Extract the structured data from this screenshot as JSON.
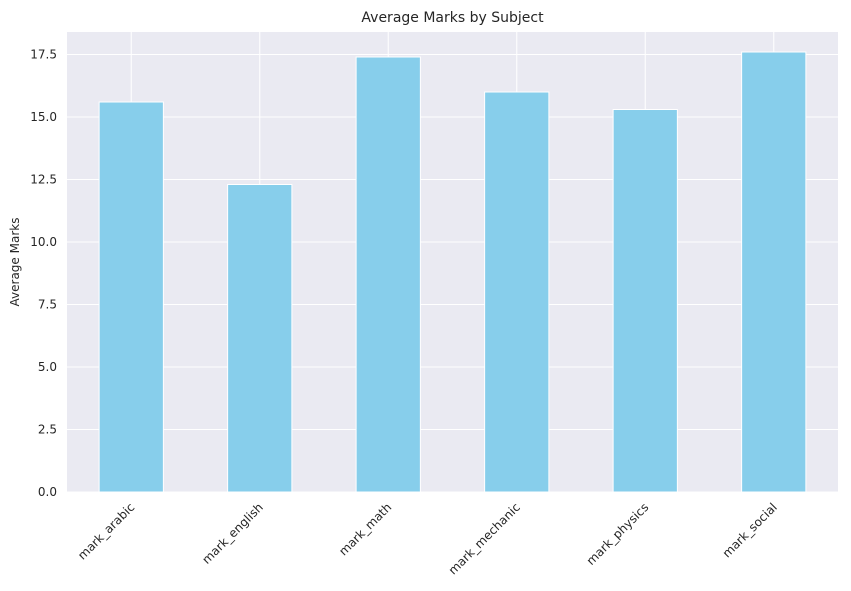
{
  "chart_data": {
    "type": "bar",
    "title": "Average Marks by Subject",
    "xlabel": "",
    "ylabel": "Average Marks",
    "categories": [
      "mark_arabic",
      "mark_english",
      "mark_math",
      "mark_mechanic",
      "mark_physics",
      "mark_social"
    ],
    "values": [
      15.6,
      12.3,
      17.4,
      16.0,
      15.3,
      17.6
    ],
    "ylim": [
      0,
      18.4
    ],
    "yticks": [
      0.0,
      2.5,
      5.0,
      7.5,
      10.0,
      12.5,
      15.0,
      17.5
    ],
    "ytick_labels": [
      "0.0",
      "2.5",
      "5.0",
      "7.5",
      "10.0",
      "12.5",
      "15.0",
      "17.5"
    ],
    "grid": true,
    "colors": {
      "bar": "#87ceeb",
      "bar_edge": "#ffffff",
      "plot_background": "#eaeaf2",
      "grid": "#ffffff",
      "text": "#262626"
    }
  }
}
